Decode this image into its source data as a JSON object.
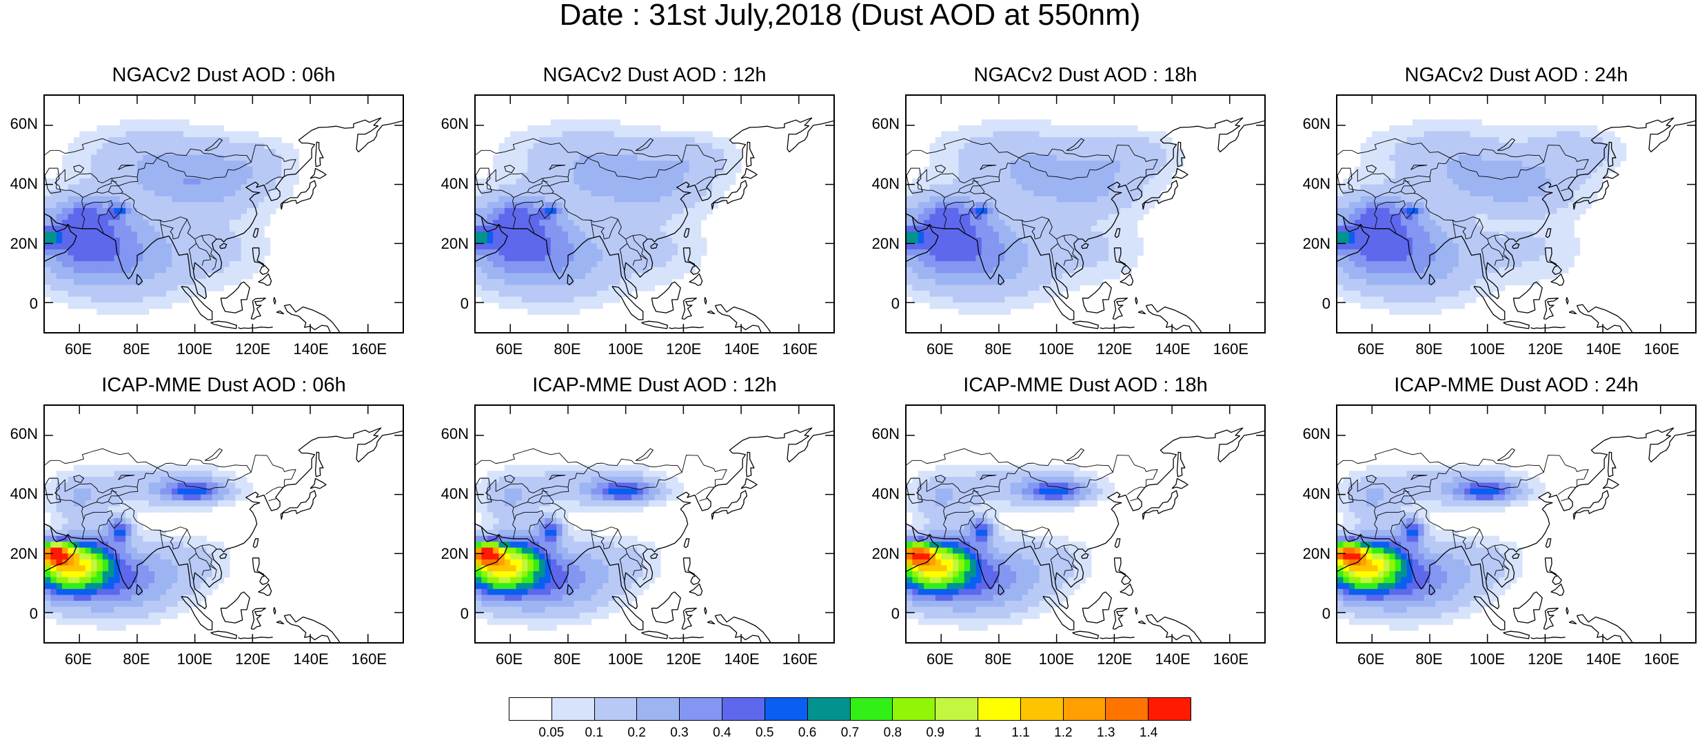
{
  "title": "Date : 31st July,2018 (Dust AOD at 550nm)",
  "panels": [
    {
      "title": "NGACv2 Dust AOD : 06h",
      "model": "ngac",
      "hour": 6
    },
    {
      "title": "NGACv2 Dust AOD : 12h",
      "model": "ngac",
      "hour": 12
    },
    {
      "title": "NGACv2 Dust AOD : 18h",
      "model": "ngac",
      "hour": 18
    },
    {
      "title": "NGACv2 Dust AOD : 24h",
      "model": "ngac",
      "hour": 24
    },
    {
      "title": "ICAP-MME Dust AOD : 06h",
      "model": "icap",
      "hour": 6
    },
    {
      "title": "ICAP-MME Dust AOD : 12h",
      "model": "icap",
      "hour": 12
    },
    {
      "title": "ICAP-MME Dust AOD : 18h",
      "model": "icap",
      "hour": 18
    },
    {
      "title": "ICAP-MME Dust AOD : 24h",
      "model": "icap",
      "hour": 24
    }
  ],
  "map_extent": {
    "lon": [
      48,
      172
    ],
    "lat": [
      -10,
      70
    ]
  },
  "x_ticks": [
    "60E",
    "80E",
    "100E",
    "120E",
    "140E",
    "160E"
  ],
  "x_tick_values": [
    60,
    80,
    100,
    120,
    140,
    160
  ],
  "y_ticks": [
    "0",
    "20N",
    "40N",
    "60N"
  ],
  "y_tick_values": [
    0,
    20,
    40,
    60
  ],
  "colorbar": {
    "labels": [
      "0.05",
      "0.1",
      "0.2",
      "0.3",
      "0.4",
      "0.5",
      "0.6",
      "0.7",
      "0.8",
      "0.9",
      "1",
      "1.1",
      "1.2",
      "1.3",
      "1.4"
    ],
    "colors": [
      "#ffffff",
      "#d7e3fb",
      "#b8c9f6",
      "#9db4f3",
      "#8396f1",
      "#5e68ec",
      "#0a5ef2",
      "#02938f",
      "#33ef18",
      "#91f507",
      "#c3f73f",
      "#ffff00",
      "#ffc400",
      "#ffa000",
      "#ff7400",
      "#ff1a00"
    ]
  }
}
